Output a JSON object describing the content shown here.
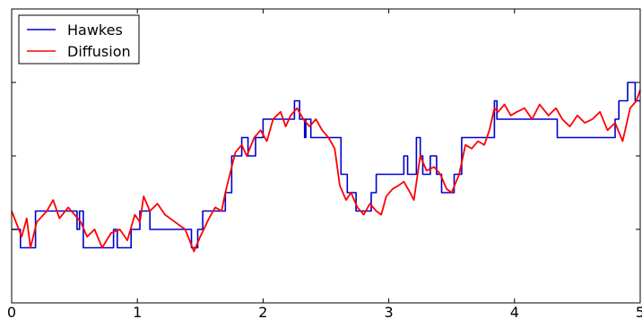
{
  "chart_data": {
    "type": "line",
    "title": "",
    "xlabel": "",
    "ylabel": "",
    "xlim": [
      0,
      5
    ],
    "ylim": [
      -0.2,
      0.6
    ],
    "x_ticks": [
      0,
      1,
      2,
      3,
      4,
      5
    ],
    "x_tick_labels": [
      "0",
      "1",
      "2",
      "3",
      "4",
      "5"
    ],
    "y_ticks": [
      0,
      0.2,
      0.4
    ],
    "y_tick_labels": [
      "",
      "",
      ""
    ],
    "grid": false,
    "legend": {
      "placement": "top-left",
      "entries": [
        "Hawkes",
        "Diffusion"
      ]
    },
    "series": [
      {
        "name": "Hawkes",
        "color": "#0000cc",
        "style": "step",
        "x": [
          0,
          0.07,
          0.19,
          0.45,
          0.52,
          0.54,
          0.57,
          0.75,
          0.81,
          0.84,
          0.95,
          1.02,
          1.1,
          1.37,
          1.43,
          1.48,
          1.52,
          1.61,
          1.68,
          1.7,
          1.75,
          1.82,
          1.83,
          1.88,
          1.94,
          2.0,
          2.05,
          2.08,
          2.25,
          2.29,
          2.33,
          2.34,
          2.38,
          2.42,
          2.46,
          2.49,
          2.62,
          2.67,
          2.68,
          2.74,
          2.81,
          2.86,
          2.9,
          2.96,
          3.0,
          3.12,
          3.15,
          3.22,
          3.25,
          3.27,
          3.33,
          3.38,
          3.42,
          3.46,
          3.52,
          3.58,
          3.6,
          3.64,
          3.68,
          3.77,
          3.84,
          3.86,
          3.9,
          3.92,
          3.98,
          4.08,
          4.25,
          4.34,
          4.42,
          4.6,
          4.8,
          4.83,
          4.9,
          4.96,
          5.0
        ],
        "y": [
          0.0,
          -0.05,
          0.05,
          0.05,
          0.0,
          0.05,
          -0.05,
          -0.05,
          0.0,
          -0.05,
          0.0,
          0.05,
          0.0,
          0.0,
          -0.05,
          0.0,
          0.05,
          0.05,
          0.05,
          0.1,
          0.2,
          0.2,
          0.25,
          0.2,
          0.25,
          0.3,
          0.3,
          0.3,
          0.35,
          0.3,
          0.25,
          0.3,
          0.25,
          0.25,
          0.25,
          0.25,
          0.15,
          0.1,
          0.1,
          0.05,
          0.05,
          0.1,
          0.15,
          0.15,
          0.15,
          0.2,
          0.15,
          0.25,
          0.2,
          0.15,
          0.2,
          0.15,
          0.1,
          0.1,
          0.15,
          0.25,
          0.25,
          0.25,
          0.25,
          0.25,
          0.35,
          0.3,
          0.3,
          0.3,
          0.3,
          0.3,
          0.3,
          0.25,
          0.25,
          0.25,
          0.3,
          0.35,
          0.4,
          0.35,
          0.35
        ]
      },
      {
        "name": "Diffusion",
        "color": "#ff0000",
        "style": "line",
        "x": [
          0,
          0.08,
          0.12,
          0.15,
          0.2,
          0.28,
          0.33,
          0.38,
          0.45,
          0.5,
          0.55,
          0.6,
          0.66,
          0.72,
          0.79,
          0.86,
          0.92,
          0.98,
          1.02,
          1.05,
          1.1,
          1.16,
          1.22,
          1.3,
          1.38,
          1.45,
          1.5,
          1.57,
          1.62,
          1.67,
          1.7,
          1.75,
          1.78,
          1.83,
          1.87,
          1.93,
          1.98,
          2.03,
          2.08,
          2.14,
          2.18,
          2.22,
          2.27,
          2.32,
          2.37,
          2.42,
          2.47,
          2.52,
          2.57,
          2.61,
          2.66,
          2.7,
          2.75,
          2.8,
          2.85,
          2.9,
          2.94,
          2.98,
          3.03,
          3.08,
          3.12,
          3.17,
          3.2,
          3.25,
          3.3,
          3.36,
          3.41,
          3.46,
          3.5,
          3.56,
          3.61,
          3.66,
          3.71,
          3.76,
          3.8,
          3.84,
          3.87,
          3.92,
          3.97,
          4.02,
          4.08,
          4.14,
          4.2,
          4.27,
          4.33,
          4.38,
          4.44,
          4.5,
          4.56,
          4.62,
          4.68,
          4.74,
          4.8,
          4.86,
          4.92,
          4.97,
          5.0
        ],
        "y": [
          0.05,
          -0.02,
          0.03,
          -0.05,
          0.02,
          0.05,
          0.08,
          0.03,
          0.06,
          0.04,
          0.02,
          -0.02,
          0.0,
          -0.05,
          -0.01,
          0.0,
          -0.03,
          0.04,
          0.02,
          0.09,
          0.05,
          0.07,
          0.04,
          0.02,
          0.0,
          -0.06,
          -0.02,
          0.03,
          0.06,
          0.05,
          0.1,
          0.17,
          0.21,
          0.23,
          0.2,
          0.25,
          0.27,
          0.24,
          0.3,
          0.32,
          0.28,
          0.31,
          0.33,
          0.3,
          0.28,
          0.3,
          0.27,
          0.25,
          0.22,
          0.12,
          0.08,
          0.1,
          0.06,
          0.04,
          0.07,
          0.05,
          0.04,
          0.09,
          0.11,
          0.12,
          0.13,
          0.1,
          0.08,
          0.2,
          0.16,
          0.17,
          0.15,
          0.11,
          0.1,
          0.15,
          0.23,
          0.22,
          0.24,
          0.23,
          0.27,
          0.33,
          0.32,
          0.34,
          0.31,
          0.32,
          0.33,
          0.3,
          0.34,
          0.31,
          0.33,
          0.3,
          0.28,
          0.31,
          0.29,
          0.3,
          0.32,
          0.27,
          0.29,
          0.24,
          0.33,
          0.35,
          0.38
        ]
      }
    ]
  }
}
